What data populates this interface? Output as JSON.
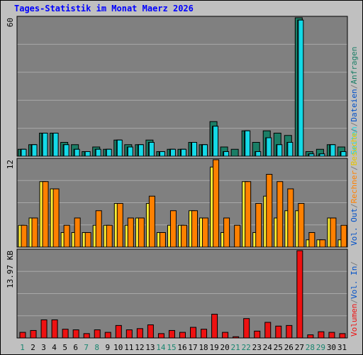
{
  "title": "Tages-Statistik im Monat Maerz 2026",
  "colors": {
    "background": "#c0c0c0",
    "plot_background": "#808080",
    "gridline": "#a8a8a8",
    "title": "#0000ff",
    "anfragen": "#1b7e66",
    "dateien": "#22d5f0",
    "seiten": "#14d9e7",
    "besuche": "#ffee33",
    "rechner": "#ff8000",
    "volumen": "#ee1111",
    "weekend_label": "#19856f",
    "weekday_label": "#000000",
    "right_gray": "#7a7a7a"
  },
  "right_labels": {
    "top": [
      {
        "text": "Anfragen",
        "color": "#1b7e66"
      },
      {
        "text": "Dateien",
        "color": "#0050c8"
      },
      {
        "text": "Seiten",
        "color": "#14d9e7"
      }
    ],
    "mid": [
      {
        "text": "Besuche",
        "color": "#e6c300"
      },
      {
        "text": "Rechner",
        "color": "#ff8000"
      },
      {
        "text": "Vol. Out",
        "color": "#0050c8"
      }
    ],
    "bottom": [
      {
        "text": "Vol. In",
        "color": "#0050c8"
      },
      {
        "text": "Volumen",
        "color": "#ee1111"
      }
    ],
    "separator": "/"
  },
  "chart_data": [
    {
      "type": "bar",
      "panel": "top",
      "y_tick_label": "60",
      "ylim": [
        0,
        60
      ],
      "x": [
        "1",
        "2",
        "3",
        "4",
        "5",
        "6",
        "7",
        "8",
        "9",
        "10",
        "11",
        "12",
        "13",
        "14",
        "15",
        "16",
        "17",
        "18",
        "19",
        "20",
        "21",
        "22",
        "23",
        "24",
        "25",
        "26",
        "27",
        "28",
        "29",
        "30",
        "31"
      ],
      "series": [
        {
          "name": "Anfragen",
          "values": [
            3,
            5,
            10,
            10,
            6,
            5,
            2,
            4,
            3,
            7,
            5,
            5,
            7,
            2,
            3,
            3,
            6,
            5,
            15,
            4,
            3,
            11,
            6,
            11,
            10,
            9,
            60,
            2,
            3,
            5,
            4
          ]
        },
        {
          "name": "Dateien",
          "values": [
            3,
            5,
            10,
            10,
            5,
            3,
            2,
            3,
            3,
            7,
            4,
            5,
            6,
            2,
            3,
            3,
            6,
            5,
            13,
            2,
            0,
            11,
            2,
            8,
            5,
            6,
            59,
            1,
            1,
            5,
            2
          ]
        },
        {
          "name": "Seiten",
          "values": [
            3,
            5,
            10,
            10,
            5,
            3,
            2,
            3,
            3,
            7,
            4,
            5,
            6,
            2,
            3,
            3,
            6,
            5,
            13,
            2,
            0,
            11,
            2,
            8,
            5,
            6,
            59,
            1,
            1,
            5,
            2
          ]
        }
      ]
    },
    {
      "type": "bar",
      "panel": "middle",
      "y_tick_label": "12",
      "ylim": [
        0,
        12
      ],
      "x": [
        "1",
        "2",
        "3",
        "4",
        "5",
        "6",
        "7",
        "8",
        "9",
        "10",
        "11",
        "12",
        "13",
        "14",
        "15",
        "16",
        "17",
        "18",
        "19",
        "20",
        "21",
        "22",
        "23",
        "24",
        "25",
        "26",
        "27",
        "28",
        "29",
        "30",
        "31"
      ],
      "series": [
        {
          "name": "Besuche",
          "values": [
            3,
            4,
            9,
            8,
            2,
            2,
            2,
            3,
            3,
            6,
            3,
            4,
            6,
            2,
            3,
            3,
            5,
            4,
            11,
            2,
            0,
            9,
            2,
            7,
            4,
            5,
            5,
            1,
            1,
            4,
            1
          ]
        },
        {
          "name": "Rechner",
          "values": [
            3,
            4,
            9,
            8,
            3,
            4,
            2,
            5,
            3,
            6,
            4,
            4,
            7,
            2,
            5,
            3,
            5,
            4,
            12,
            4,
            3,
            9,
            6,
            10,
            9,
            8,
            6,
            2,
            1,
            4,
            3
          ]
        }
      ]
    },
    {
      "type": "bar",
      "panel": "bottom",
      "y_tick_label": "13.97 KB",
      "ylim": [
        0,
        13.97
      ],
      "x": [
        "1",
        "2",
        "3",
        "4",
        "5",
        "6",
        "7",
        "8",
        "9",
        "10",
        "11",
        "12",
        "13",
        "14",
        "15",
        "16",
        "17",
        "18",
        "19",
        "20",
        "21",
        "22",
        "23",
        "24",
        "25",
        "26",
        "27",
        "28",
        "29",
        "30",
        "31"
      ],
      "series": [
        {
          "name": "Volumen",
          "values": [
            0.9,
            1.2,
            2.9,
            2.9,
            1.4,
            1.3,
            0.7,
            1.3,
            0.9,
            2.0,
            1.3,
            1.5,
            2.1,
            0.7,
            1.2,
            0.9,
            1.7,
            1.4,
            3.8,
            0.9,
            0.2,
            3.1,
            1.1,
            2.5,
            1.9,
            2.0,
            13.97,
            0.5,
            1.0,
            0.9,
            0.7
          ]
        }
      ]
    }
  ]
}
